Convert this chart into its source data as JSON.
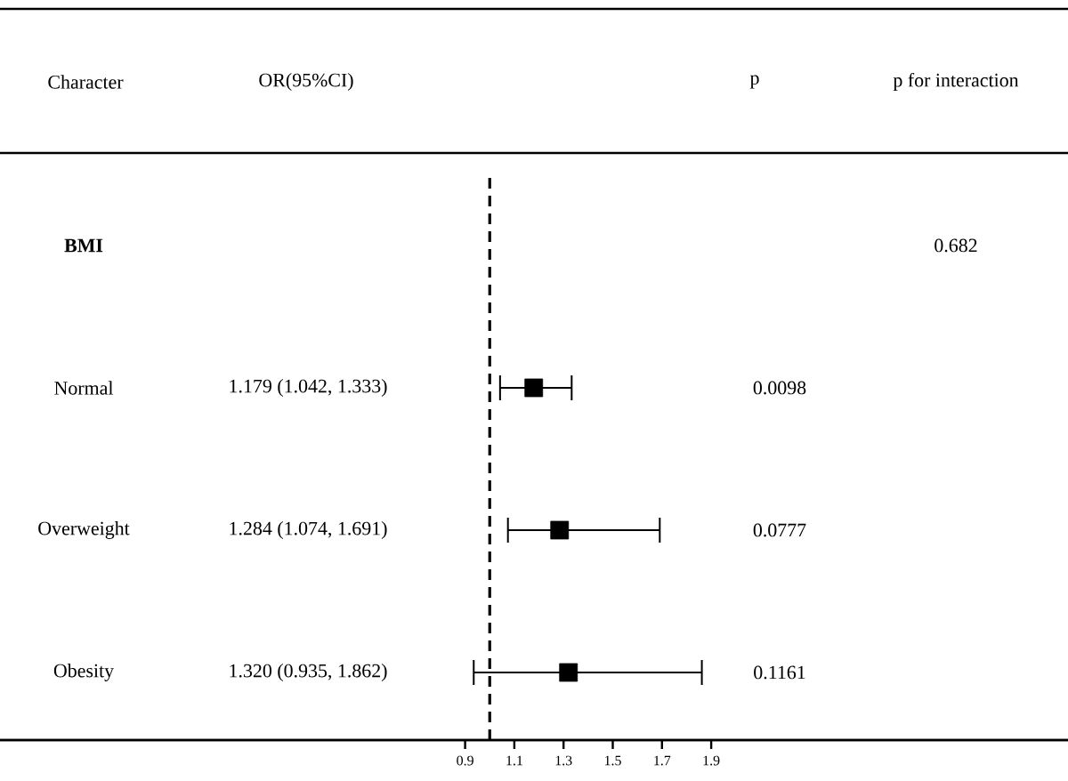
{
  "chart_data": {
    "type": "scatter",
    "orientation": "horizontal",
    "marker": "square",
    "color": "#000000",
    "categories": [
      "BMI",
      "Normal",
      "Overweight",
      "Obesity"
    ],
    "values": [
      null,
      1.179,
      1.284,
      1.32
    ],
    "errors": [
      null,
      [
        1.042,
        1.333
      ],
      [
        1.074,
        1.691
      ],
      [
        0.935,
        1.862
      ]
    ],
    "xlim": [
      -0.99,
      3.35
    ],
    "xticks": [
      0.9,
      1.1,
      1.3,
      1.5,
      1.7,
      1.9
    ],
    "ref_lines": [
      {
        "axis": "x",
        "value": 1,
        "line_style": "dashed"
      }
    ],
    "annotations": [
      "Character",
      "OR(95%CI)",
      "p",
      "p for interaction",
      "0.0098",
      "0.0777",
      "0.1161",
      "0.682",
      "1.179 (1.042, 1.333)",
      "1.284 (1.074, 1.691)",
      "1.320 (0.935, 1.862)"
    ]
  }
}
